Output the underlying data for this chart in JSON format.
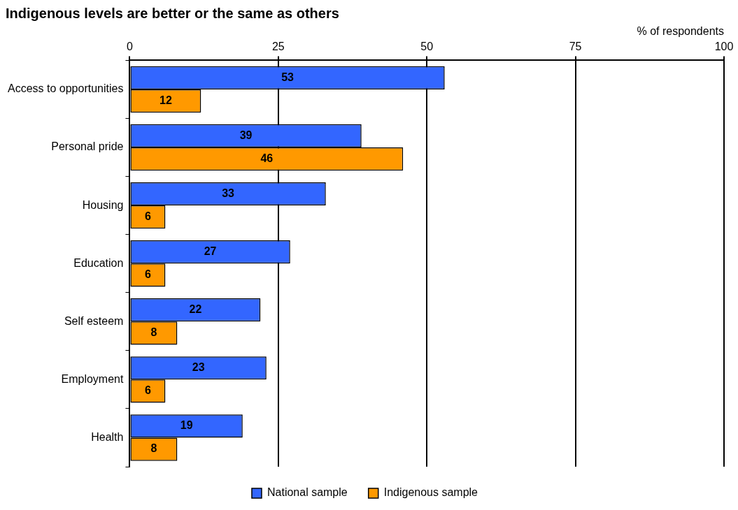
{
  "chart_data": {
    "type": "bar",
    "orientation": "horizontal",
    "title": "Indigenous levels are better or the same as others",
    "xlabel": "% of respondents",
    "categories": [
      "Access to opportunities",
      "Personal pride",
      "Housing",
      "Education",
      "Self esteem",
      "Employment",
      "Health"
    ],
    "series": [
      {
        "name": "National sample",
        "color": "#3366ff",
        "values": [
          53,
          39,
          33,
          27,
          22,
          23,
          19
        ]
      },
      {
        "name": "Indigenous sample",
        "color": "#ff9900",
        "values": [
          12,
          46,
          6,
          6,
          8,
          6,
          8
        ]
      }
    ],
    "xlim": [
      0,
      100
    ],
    "xticks": [
      0,
      25,
      50,
      75,
      100
    ],
    "grid": "x",
    "legend": "bottom",
    "data_labels": true
  }
}
